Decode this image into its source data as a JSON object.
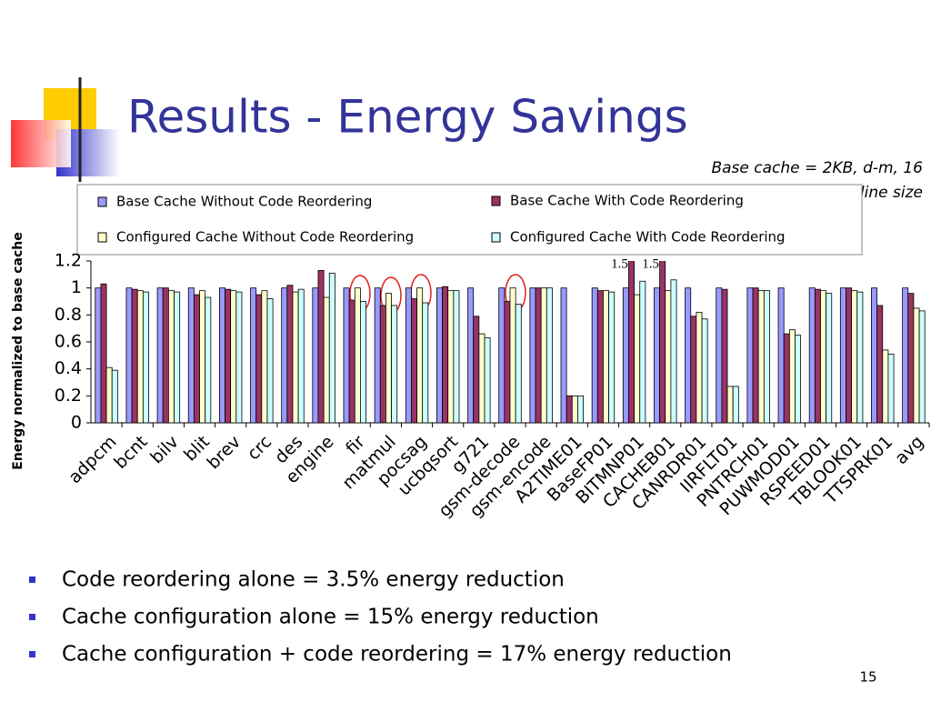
{
  "slide": {
    "title": "Results - Energy Savings",
    "note": [
      "Base cache = 2KB, d-m, 16",
      "byte line size"
    ],
    "bullets": [
      "Code reordering alone = 3.5% energy reduction",
      "Cache configuration alone = 15% energy reduction",
      "Cache configuration + code reordering = 17% energy reduction"
    ],
    "page_number": "15"
  },
  "chart_data": {
    "type": "bar",
    "ylabel": "Energy normalized to base cache",
    "categories": [
      "adpcm",
      "bcnt",
      "bilv",
      "blit",
      "brev",
      "crc",
      "des",
      "engine",
      "fir",
      "matmul",
      "pocsag",
      "ucbqsort",
      "g721",
      "gsm-decode",
      "gsm-encode",
      "A2TIME01",
      "BaseFP01",
      "BITMNP01",
      "CACHEB01",
      "CANRDR01",
      "IIRFLT01",
      "PNTRCH01",
      "PUWMOD01",
      "RSPEED01",
      "TBLOOK01",
      "TTSPRK01",
      "avg"
    ],
    "series": [
      {
        "name": "Base Cache Without Code Reordering",
        "color": "#9999ff",
        "values": [
          1,
          1,
          1,
          1,
          1,
          1,
          1,
          1,
          1,
          1,
          1,
          1,
          1,
          1,
          1,
          1,
          1,
          1,
          1,
          1,
          1,
          1,
          1,
          1,
          1,
          1,
          1
        ]
      },
      {
        "name": "Base Cache With Code Reordering",
        "color": "#993366",
        "values": [
          1.03,
          0.99,
          1,
          0.95,
          0.99,
          0.95,
          1.02,
          1.13,
          0.91,
          0.87,
          0.92,
          1.01,
          0.79,
          0.9,
          1,
          0.2,
          0.98,
          1.5,
          1.5,
          0.79,
          0.99,
          1,
          0.66,
          0.99,
          1,
          0.87,
          0.96
        ],
        "value_labels": [
          null,
          null,
          null,
          null,
          null,
          null,
          null,
          null,
          null,
          null,
          null,
          null,
          null,
          null,
          null,
          null,
          null,
          "1.5",
          "1.5",
          null,
          null,
          null,
          null,
          null,
          null,
          null,
          null
        ]
      },
      {
        "name": "Configured Cache Without Code Reordering",
        "color": "#ffffcc",
        "values": [
          0.41,
          0.98,
          0.98,
          0.98,
          0.98,
          0.98,
          0.97,
          0.93,
          1,
          0.96,
          1,
          0.98,
          0.66,
          1,
          1,
          0.2,
          0.98,
          0.95,
          0.98,
          0.82,
          0.27,
          0.98,
          0.69,
          0.98,
          0.98,
          0.54,
          0.85
        ]
      },
      {
        "name": "Configured Cache With Code Reordering",
        "color": "#ccffff",
        "values": [
          0.39,
          0.97,
          0.97,
          0.93,
          0.97,
          0.92,
          0.99,
          1.11,
          0.9,
          0.87,
          0.89,
          0.98,
          0.63,
          0.88,
          1,
          0.2,
          0.97,
          1.05,
          1.06,
          0.77,
          0.27,
          0.98,
          0.65,
          0.96,
          0.97,
          0.51,
          0.83
        ]
      }
    ],
    "ylim": [
      0,
      1.2
    ],
    "yticks": [
      0,
      0.2,
      0.4,
      0.6,
      0.8,
      1,
      1.2
    ],
    "grid": false
  }
}
